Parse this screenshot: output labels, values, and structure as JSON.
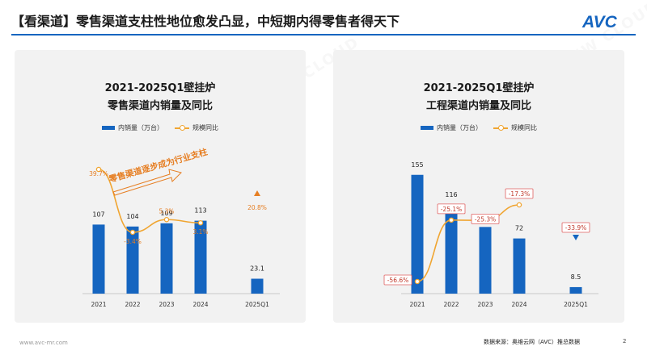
{
  "header": {
    "title": "【看渠道】零售渠道支柱性地位愈发凸显，中短期内得零售者得天下"
  },
  "logo": {
    "text": "AVC"
  },
  "watermark": {
    "brand": "AVC",
    "cn": "奥维云网",
    "en": "ALL VIEW CLOUD"
  },
  "colors": {
    "bar": "#1565c0",
    "line": "#f0a531",
    "accent_up": "#e67e22",
    "accent_down": "#1565c0"
  },
  "left": {
    "title_line1": "2021-2025Q1壁挂炉",
    "title_line2": "零售渠道内销量及同比",
    "legend_bar": "内销量（万台）",
    "legend_line": "规模同比",
    "annotation": "零售渠道逐步成为行业支柱"
  },
  "right": {
    "title_line1": "2021-2025Q1壁挂炉",
    "title_line2": "工程渠道内销量及同比",
    "legend_bar": "内销量（万台）",
    "legend_line": "规模同比"
  },
  "chart_data": [
    {
      "type": "bar",
      "title": "2021-2025Q1壁挂炉 零售渠道内销量及同比",
      "categories": [
        "2021",
        "2022",
        "2023",
        "2024",
        "2025Q1"
      ],
      "series": [
        {
          "name": "内销量（万台）",
          "type": "bar",
          "values": [
            107,
            104,
            109,
            113,
            23.1
          ],
          "labels": [
            "107",
            "104",
            "109",
            "113",
            "23.1"
          ]
        },
        {
          "name": "规模同比",
          "type": "line",
          "unit": "%",
          "values": [
            39.7,
            -3.4,
            5.3,
            3.1,
            20.8
          ],
          "labels": [
            "39.7%",
            "-3.4%",
            "5.3%",
            "3.1%",
            "20.8%"
          ]
        }
      ],
      "annotation": "零售渠道逐步成为行业支柱",
      "legend": "top-center"
    },
    {
      "type": "bar",
      "title": "2021-2025Q1壁挂炉 工程渠道内销量及同比",
      "categories": [
        "2021",
        "2022",
        "2023",
        "2024",
        "2025Q1"
      ],
      "series": [
        {
          "name": "内销量（万台）",
          "type": "bar",
          "values": [
            155,
            116,
            87,
            72,
            8.5
          ],
          "labels": [
            "155",
            "116",
            "87",
            "72",
            "8.5"
          ]
        },
        {
          "name": "规模同比",
          "type": "line",
          "unit": "%",
          "values": [
            -56.6,
            -25.1,
            -25.3,
            -17.3,
            -33.9
          ],
          "labels": [
            "-56.6%",
            "-25.1%",
            "-25.3%",
            "-17.3%",
            "-33.9%"
          ]
        }
      ],
      "legend": "top-center"
    }
  ],
  "footer": {
    "site": "www.avc-mr.com",
    "source": "数据来源：奥维云网（AVC）推总数据",
    "page": "2"
  }
}
